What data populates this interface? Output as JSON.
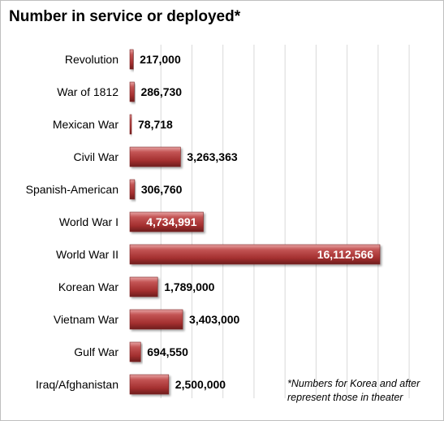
{
  "chart_data": {
    "type": "bar",
    "orientation": "horizontal",
    "title": "Number in service or deployed*",
    "categories": [
      "Revolution",
      "War of 1812",
      "Mexican War",
      "Civil War",
      "Spanish-American",
      "World War I",
      "World War II",
      "Korean War",
      "Vietnam War",
      "Gulf War",
      "Iraq/Afghanistan"
    ],
    "values": [
      217000,
      286730,
      78718,
      3263363,
      306760,
      4734991,
      16112566,
      1789000,
      3403000,
      694550,
      2500000
    ],
    "value_labels": [
      "217,000",
      "286,730",
      "78,718",
      "3,263,363",
      "306,760",
      "4,734,991",
      "16,112,566",
      "1,789,000",
      "3,403,000",
      "694,550",
      "2,500,000"
    ],
    "labels_inside": [
      false,
      false,
      false,
      false,
      false,
      true,
      true,
      false,
      false,
      false,
      false
    ],
    "xlim": [
      0,
      20000000
    ],
    "gridlines": "vertical",
    "bar_color": "#a93a3a",
    "footnote": "*Numbers for Korea and after represent those in theater"
  }
}
